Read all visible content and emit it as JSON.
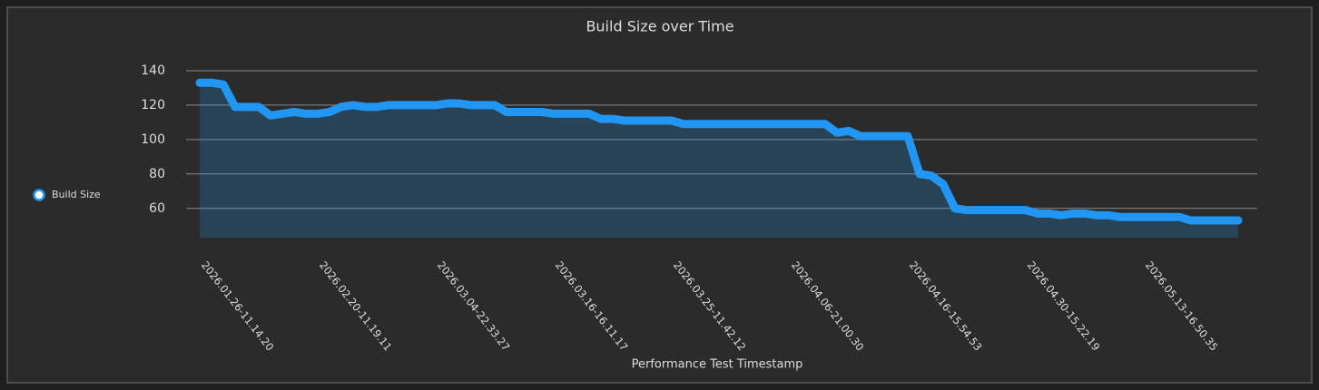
{
  "chart_data": {
    "type": "line",
    "title": "Build Size over Time",
    "x_label": "Performance Test Timestamp",
    "categories": [
      "2026.01.26-11.14.20",
      null,
      null,
      null,
      null,
      null,
      null,
      null,
      null,
      null,
      "2026.02.20-11.19.11",
      null,
      null,
      null,
      null,
      null,
      null,
      null,
      null,
      null,
      "2026.03.04-22.33.27",
      null,
      null,
      null,
      null,
      null,
      null,
      null,
      null,
      null,
      "2026.03.16-16.11.17",
      null,
      null,
      null,
      null,
      null,
      null,
      null,
      null,
      null,
      "2026.03.25-11.42.12",
      null,
      null,
      null,
      null,
      null,
      null,
      null,
      null,
      null,
      "2026.04.06-21.00.30",
      null,
      null,
      null,
      null,
      null,
      null,
      null,
      null,
      null,
      "2026.04.16-15.54.53",
      null,
      null,
      null,
      null,
      null,
      null,
      null,
      null,
      null,
      "2026.04.30-15.22.19",
      null,
      null,
      null,
      null,
      null,
      null,
      null,
      null,
      null,
      "2026.05.13-16.50.35",
      null,
      null,
      null,
      null,
      null,
      null,
      null,
      null
    ],
    "series": [
      {
        "name": "Build Size",
        "color": "#2196f3",
        "values": [
          133,
          133,
          132,
          119,
          119,
          119,
          114,
          115,
          116,
          115,
          115,
          116,
          119,
          120,
          119,
          119,
          120,
          120,
          120,
          120,
          120,
          121,
          121,
          120,
          120,
          120,
          116,
          116,
          116,
          116,
          115,
          115,
          115,
          115,
          112,
          112,
          111,
          111,
          111,
          111,
          111,
          109,
          109,
          109,
          109,
          109,
          109,
          109,
          109,
          109,
          109,
          109,
          109,
          109,
          104,
          105,
          102,
          102,
          102,
          102,
          102,
          80,
          79,
          74,
          60,
          59,
          59,
          59,
          59,
          59,
          59,
          57,
          57,
          56,
          57,
          57,
          56,
          56,
          55,
          55,
          55,
          55,
          55,
          55,
          53,
          53,
          53,
          53,
          53
        ]
      }
    ],
    "ylim": [
      43,
      145
    ],
    "yticks": [
      60,
      80,
      100,
      120,
      140
    ],
    "grid": true,
    "legend": "left"
  }
}
